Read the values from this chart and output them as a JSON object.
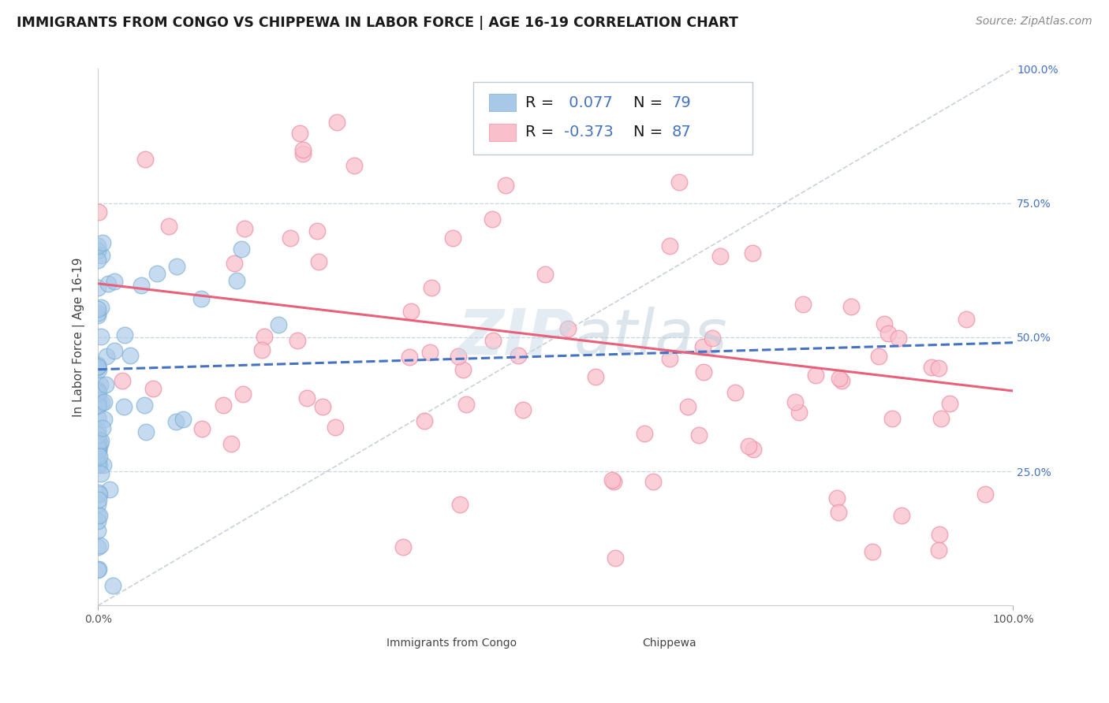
{
  "title": "IMMIGRANTS FROM CONGO VS CHIPPEWA IN LABOR FORCE | AGE 16-19 CORRELATION CHART",
  "source": "Source: ZipAtlas.com",
  "ylabel": "In Labor Force | Age 16-19",
  "xlim": [
    0.0,
    1.0
  ],
  "ylim": [
    0.0,
    1.0
  ],
  "congo_color": "#a8c8e8",
  "congo_edge_color": "#7aafd4",
  "chippewa_color": "#f9c0cc",
  "chippewa_edge_color": "#f090a8",
  "congo_line_color": "#4472c4",
  "chippewa_line_color": "#e8607a",
  "diagonal_color": "#c0c8d4",
  "title_fontsize": 12.5,
  "source_fontsize": 10,
  "axis_label_fontsize": 11,
  "tick_fontsize": 10,
  "legend_fontsize": 14,
  "R_value_color": "#4472c4",
  "N_value_color": "#4472c4",
  "right_tick_color": "#4472c4",
  "background_color": "#ffffff",
  "grid_color": "#c8d4e0",
  "watermark_color": "#c8d8e8",
  "watermark_alpha": 0.5
}
